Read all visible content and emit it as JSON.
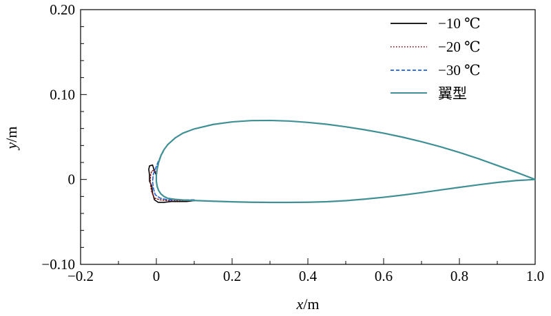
{
  "chart_data": {
    "type": "line",
    "xlabel_var": "x",
    "xlabel_unit": "/m",
    "ylabel_var": "y",
    "ylabel_unit": "/m",
    "xlim": [
      -0.2,
      1.0
    ],
    "ylim": [
      -0.1,
      0.2
    ],
    "x_ticks": [
      "−0.2",
      "0",
      "0.2",
      "0.4",
      "0.6",
      "0.8",
      "1.0"
    ],
    "y_ticks": [
      "−0.10",
      "0",
      "0.10",
      "0.20"
    ],
    "legend_position": "top-right",
    "series": [
      {
        "name": "−10 ℃",
        "color": "#000000",
        "dash": "solid",
        "points": [
          [
            0.1,
            -0.025
          ],
          [
            0.08,
            -0.026
          ],
          [
            0.06,
            -0.026
          ],
          [
            0.04,
            -0.026
          ],
          [
            0.02,
            -0.027
          ],
          [
            0.005,
            -0.027
          ],
          [
            -0.005,
            -0.024
          ],
          [
            -0.01,
            -0.016
          ],
          [
            -0.012,
            -0.008
          ],
          [
            -0.018,
            -0.002
          ],
          [
            -0.018,
            0.005
          ],
          [
            -0.02,
            0.012
          ],
          [
            -0.018,
            0.016
          ],
          [
            -0.01,
            0.017
          ],
          [
            -0.005,
            0.01
          ],
          [
            0.0,
            0.005
          ]
        ]
      },
      {
        "name": "−20 ℃",
        "color": "#8b1a1a",
        "dash": "dotted",
        "points": [
          [
            0.1,
            -0.024
          ],
          [
            0.06,
            -0.025
          ],
          [
            0.03,
            -0.025
          ],
          [
            0.01,
            -0.024
          ],
          [
            -0.005,
            -0.022
          ],
          [
            -0.012,
            -0.015
          ],
          [
            -0.015,
            -0.008
          ],
          [
            -0.016,
            0.0
          ],
          [
            -0.015,
            0.006
          ],
          [
            -0.012,
            0.01
          ],
          [
            -0.006,
            0.011
          ],
          [
            0.0,
            0.008
          ]
        ]
      },
      {
        "name": "−30 ℃",
        "color": "#1f5fd6",
        "dash": "dashed",
        "points": [
          [
            0.1,
            -0.024
          ],
          [
            0.06,
            -0.024
          ],
          [
            0.03,
            -0.024
          ],
          [
            0.01,
            -0.022
          ],
          [
            -0.003,
            -0.018
          ],
          [
            -0.008,
            -0.01
          ],
          [
            -0.01,
            -0.002
          ],
          [
            -0.008,
            0.006
          ],
          [
            -0.003,
            0.012
          ],
          [
            0.004,
            0.02
          ],
          [
            0.012,
            0.028
          ],
          [
            0.02,
            0.034
          ]
        ]
      },
      {
        "name": "翼型",
        "color": "#3f8f94",
        "dash": "solid",
        "points": [
          [
            1.0,
            0.0
          ],
          [
            0.95,
            0.0085
          ],
          [
            0.9,
            0.0165
          ],
          [
            0.85,
            0.0245
          ],
          [
            0.8,
            0.0318
          ],
          [
            0.75,
            0.0385
          ],
          [
            0.7,
            0.0445
          ],
          [
            0.65,
            0.0498
          ],
          [
            0.6,
            0.0545
          ],
          [
            0.55,
            0.0585
          ],
          [
            0.5,
            0.062
          ],
          [
            0.45,
            0.065
          ],
          [
            0.4,
            0.0672
          ],
          [
            0.35,
            0.0688
          ],
          [
            0.3,
            0.0695
          ],
          [
            0.25,
            0.0693
          ],
          [
            0.2,
            0.0678
          ],
          [
            0.15,
            0.0648
          ],
          [
            0.1,
            0.0595
          ],
          [
            0.07,
            0.0545
          ],
          [
            0.05,
            0.049
          ],
          [
            0.03,
            0.041
          ],
          [
            0.02,
            0.035
          ],
          [
            0.012,
            0.028
          ],
          [
            0.006,
            0.02
          ],
          [
            0.002,
            0.012
          ],
          [
            0.0,
            0.005
          ],
          [
            0.0,
            -0.002
          ],
          [
            0.002,
            -0.008
          ],
          [
            0.006,
            -0.013
          ],
          [
            0.012,
            -0.017
          ],
          [
            0.02,
            -0.02
          ],
          [
            0.03,
            -0.0222
          ],
          [
            0.05,
            -0.0235
          ],
          [
            0.07,
            -0.0242
          ],
          [
            0.1,
            -0.0248
          ],
          [
            0.15,
            -0.0256
          ],
          [
            0.2,
            -0.0263
          ],
          [
            0.25,
            -0.0268
          ],
          [
            0.3,
            -0.027
          ],
          [
            0.35,
            -0.027
          ],
          [
            0.4,
            -0.0268
          ],
          [
            0.45,
            -0.0262
          ],
          [
            0.5,
            -0.025
          ],
          [
            0.55,
            -0.0232
          ],
          [
            0.6,
            -0.021
          ],
          [
            0.65,
            -0.0184
          ],
          [
            0.7,
            -0.0155
          ],
          [
            0.75,
            -0.0124
          ],
          [
            0.8,
            -0.0093
          ],
          [
            0.85,
            -0.0063
          ],
          [
            0.9,
            -0.0035
          ],
          [
            0.95,
            -0.0013
          ],
          [
            1.0,
            0.0
          ]
        ]
      }
    ]
  }
}
